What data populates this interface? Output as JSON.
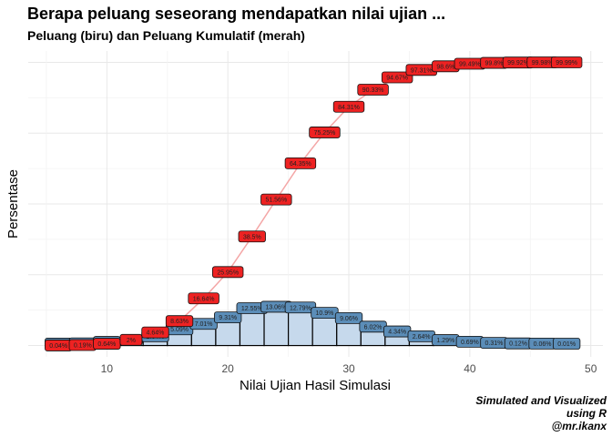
{
  "title": "Berapa peluang seseorang mendapatkan nilai ujian ...",
  "subtitle": "Peluang (biru) dan Peluang Kumulatif (merah)",
  "caption": [
    "Simulated and Visualized",
    "using R",
    "@mr.ikanx"
  ],
  "chart_data": {
    "type": "bar",
    "xlabel": "Nilai Ujian Hasil Simulasi",
    "ylabel": "Persentase",
    "x_ticks": [
      10,
      20,
      30,
      40,
      50
    ],
    "xlim": [
      3.5,
      51
    ],
    "ylim": [
      -4,
      104
    ],
    "grid": true,
    "colors": {
      "bar_fill": "#c6d9ec",
      "bar_stroke": "#000000",
      "prob_label": "#5b8db8",
      "cum_label": "#ee2222",
      "cum_line": "#f4a6a6"
    },
    "series": [
      {
        "name": "Peluang",
        "color": "biru",
        "x": [
          6,
          8,
          10,
          12,
          14,
          16,
          18,
          20,
          22,
          24,
          26,
          28,
          30,
          32,
          34,
          36,
          38,
          40,
          42,
          44,
          46,
          48
        ],
        "values": [
          0.04,
          0.15,
          0.64,
          1.2,
          2.64,
          5.09,
          7.01,
          9.31,
          12.55,
          13.06,
          12.79,
          10.9,
          9.06,
          6.02,
          4.34,
          2.64,
          1.29,
          0.69,
          0.31,
          0.12,
          0.06,
          0.01
        ],
        "labels": [
          "0.04%",
          "0.15%",
          "0.64%",
          "",
          "2.64%",
          "5.09%",
          "7.01%",
          "9.31%",
          "12.55%",
          "13.06%",
          "12.79%",
          "10.9%",
          "9.06%",
          "6.02%",
          "4.34%",
          "2.64%",
          "1.29%",
          "0.69%",
          "0.31%",
          "0.12%",
          "0.06%",
          "0.01%"
        ]
      },
      {
        "name": "Peluang Kumulatif",
        "color": "merah",
        "x": [
          6,
          8,
          10,
          12,
          14,
          16,
          18,
          20,
          22,
          24,
          26,
          28,
          30,
          32,
          34,
          36,
          38,
          40,
          42,
          44,
          46,
          48
        ],
        "values": [
          0.04,
          0.19,
          0.64,
          2,
          4.64,
          8.63,
          16.64,
          25.95,
          38.5,
          51.56,
          64.35,
          75.25,
          84.31,
          90.33,
          94.67,
          97.31,
          98.6,
          99.49,
          99.8,
          99.92,
          99.98,
          99.99
        ],
        "labels": [
          "0.04%",
          "0.19%",
          "0.64%",
          "2%",
          "4.64%",
          "8.63%",
          "16.64%",
          "25.95%",
          "38.5%",
          "51.56%",
          "64.35%",
          "75.25%",
          "84.31%",
          "90.33%",
          "94.67%",
          "97.31%",
          "98.6%",
          "99.49%",
          "99.8%",
          "99.92%",
          "99.98%",
          "99.99%"
        ]
      }
    ]
  }
}
